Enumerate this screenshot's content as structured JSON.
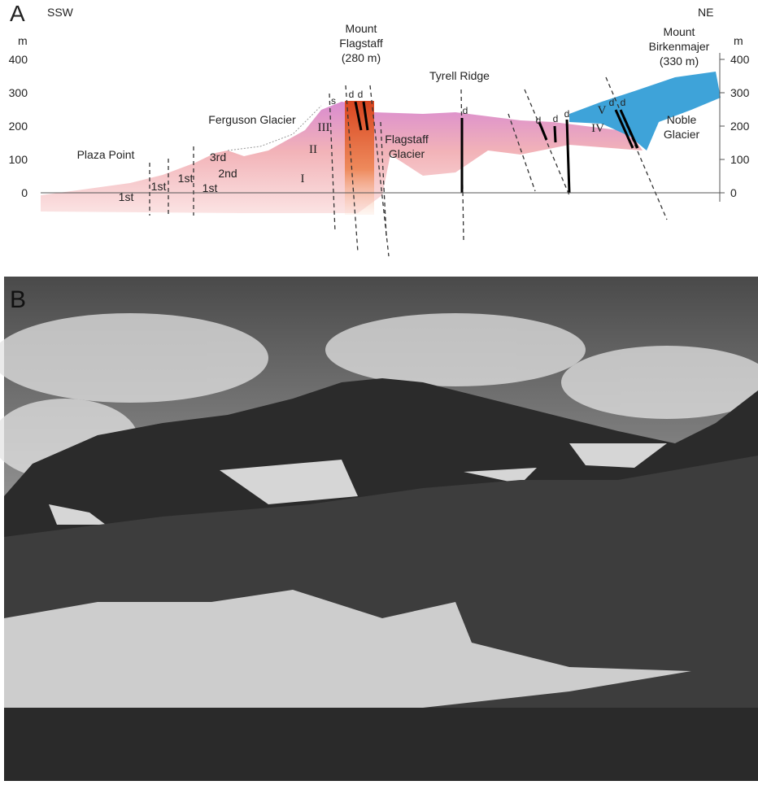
{
  "panel_a": {
    "label": "A",
    "direction_left": "SSW",
    "direction_right": "NE",
    "axis_unit_left": "m",
    "axis_unit_right": "m",
    "yticks_left": [
      0,
      100,
      200,
      300,
      400
    ],
    "yticks_right": [
      0,
      100,
      200,
      300,
      400
    ],
    "places": {
      "plaza_point": "Plaza Point",
      "ferguson_glacier": "Ferguson Glacier",
      "mount_flagstaff": [
        "Mount",
        "Flagstaff",
        "(280 m)"
      ],
      "tyrell_ridge": "Tyrell Ridge",
      "flagstaff_glacier": [
        "Flagstaff",
        "Glacier"
      ],
      "mount_birkenmajer": [
        "Mount",
        "Birkenmajer",
        "(330 m)"
      ],
      "noble_glacier": [
        "Noble",
        "Glacier"
      ]
    },
    "units": [
      "1st",
      "1st",
      "1st",
      "1st",
      "2nd",
      "3rd",
      "I",
      "II",
      "III",
      "IV",
      "V"
    ],
    "dikes": [
      "s",
      "d",
      "d",
      "d",
      "d",
      "d",
      "d",
      "d",
      "d"
    ]
  },
  "panel_b": {
    "label": "B"
  }
}
